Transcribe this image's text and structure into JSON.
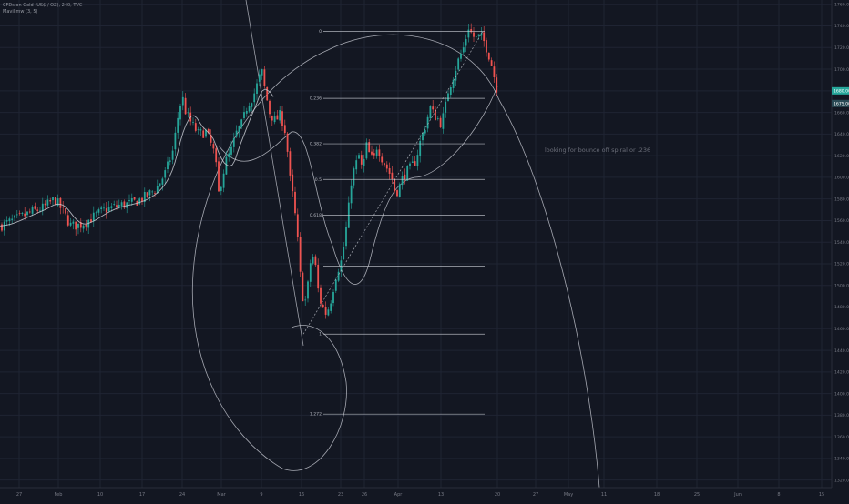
{
  "header": {
    "symbol_line": "CFDs on Gold (US$ / OZ), 240, TVC",
    "indicator_line": "Mavilimw (3, 5)"
  },
  "annotation": "looking for bounce off spiral or .236",
  "colors": {
    "background": "#131722",
    "grid": "#1f2433",
    "up": "#26a69a",
    "down": "#ef5350",
    "drawing": "#c9ccd4",
    "price_tag_current": "#26a69a",
    "price_tag_other": "#2a4a55"
  },
  "chart_data": {
    "type": "candlestick",
    "y_axis": {
      "ticks": [
        1320,
        1340,
        1360,
        1380,
        1400,
        1420,
        1440,
        1460,
        1480,
        1500,
        1520,
        1540,
        1560,
        1580,
        1600,
        1620,
        1640,
        1660,
        1680,
        1700,
        1720,
        1740,
        1760
      ],
      "tick_labels": [
        "1320.00",
        "1340.00",
        "1360.00",
        "1380.00",
        "1400.00",
        "1420.00",
        "1440.00",
        "1460.00",
        "1480.00",
        "1500.00",
        "1520.00",
        "1540.00",
        "1560.00",
        "1580.00",
        "1600.00",
        "1620.00",
        "1640.00",
        "1660.00",
        "1680.00",
        "1700.00",
        "1720.00",
        "1740.00",
        "1760.00"
      ],
      "ylim": [
        1313,
        1764
      ]
    },
    "x_axis": {
      "labels": [
        "27",
        "Feb",
        "10",
        "17",
        "24",
        "Mar",
        "9",
        "16",
        "23",
        "26",
        "Apr",
        "13",
        "20",
        "27",
        "May",
        "11",
        "18",
        "25",
        "Jun",
        "8",
        "15"
      ],
      "positions": [
        21,
        64,
        110,
        156,
        200,
        243,
        287,
        331,
        374,
        400,
        437,
        484,
        546,
        588,
        624,
        663,
        721,
        765,
        810,
        855,
        902
      ]
    },
    "price_labels": {
      "current": "1680.00",
      "other": "1675.00"
    },
    "close_path": [
      [
        0,
        1555
      ],
      [
        20,
        1562
      ],
      [
        35,
        1568
      ],
      [
        48,
        1572
      ],
      [
        60,
        1580
      ],
      [
        68,
        1570
      ],
      [
        78,
        1555
      ],
      [
        88,
        1556
      ],
      [
        100,
        1562
      ],
      [
        115,
        1570
      ],
      [
        130,
        1574
      ],
      [
        145,
        1576
      ],
      [
        160,
        1582
      ],
      [
        172,
        1590
      ],
      [
        182,
        1605
      ],
      [
        190,
        1625
      ],
      [
        196,
        1660
      ],
      [
        200,
        1675
      ],
      [
        204,
        1660
      ],
      [
        210,
        1650
      ],
      [
        218,
        1640
      ],
      [
        226,
        1642
      ],
      [
        232,
        1630
      ],
      [
        236,
        1620
      ],
      [
        240,
        1585
      ],
      [
        244,
        1600
      ],
      [
        248,
        1615
      ],
      [
        254,
        1625
      ],
      [
        260,
        1642
      ],
      [
        266,
        1650
      ],
      [
        272,
        1668
      ],
      [
        278,
        1675
      ],
      [
        284,
        1690
      ],
      [
        287,
        1700
      ],
      [
        291,
        1680
      ],
      [
        296,
        1660
      ],
      [
        302,
        1652
      ],
      [
        308,
        1658
      ],
      [
        314,
        1640
      ],
      [
        318,
        1600
      ],
      [
        322,
        1580
      ],
      [
        326,
        1550
      ],
      [
        330,
        1505
      ],
      [
        334,
        1480
      ],
      [
        338,
        1500
      ],
      [
        342,
        1530
      ],
      [
        346,
        1520
      ],
      [
        350,
        1490
      ],
      [
        354,
        1480
      ],
      [
        358,
        1474
      ],
      [
        362,
        1482
      ],
      [
        366,
        1498
      ],
      [
        370,
        1514
      ],
      [
        374,
        1520
      ],
      [
        378,
        1540
      ],
      [
        382,
        1565
      ],
      [
        386,
        1600
      ],
      [
        390,
        1610
      ],
      [
        394,
        1620
      ],
      [
        398,
        1605
      ],
      [
        402,
        1630
      ],
      [
        406,
        1620
      ],
      [
        410,
        1615
      ],
      [
        414,
        1630
      ],
      [
        418,
        1620
      ],
      [
        424,
        1610
      ],
      [
        430,
        1600
      ],
      [
        434,
        1585
      ],
      [
        438,
        1590
      ],
      [
        442,
        1600
      ],
      [
        446,
        1605
      ],
      [
        450,
        1608
      ],
      [
        456,
        1615
      ],
      [
        462,
        1635
      ],
      [
        468,
        1650
      ],
      [
        472,
        1665
      ],
      [
        476,
        1658
      ],
      [
        480,
        1655
      ],
      [
        484,
        1650
      ],
      [
        488,
        1660
      ],
      [
        492,
        1680
      ],
      [
        498,
        1695
      ],
      [
        504,
        1710
      ],
      [
        510,
        1722
      ],
      [
        514,
        1740
      ],
      [
        518,
        1732
      ],
      [
        522,
        1728
      ],
      [
        526,
        1730
      ],
      [
        530,
        1728
      ],
      [
        534,
        1720
      ],
      [
        538,
        1710
      ],
      [
        542,
        1695
      ],
      [
        546,
        1680
      ]
    ],
    "fib_levels": [
      {
        "label": "0",
        "price": 1735
      },
      {
        "label": "0.236",
        "price": 1673
      },
      {
        "label": "0.382",
        "price": 1631
      },
      {
        "label": "0.5",
        "price": 1598
      },
      {
        "label": "0.618",
        "price": 1565
      },
      {
        "label": "",
        "price": 1518
      },
      {
        "label": "1",
        "price": 1455
      },
      {
        "label": "1.272",
        "price": 1381
      }
    ]
  }
}
